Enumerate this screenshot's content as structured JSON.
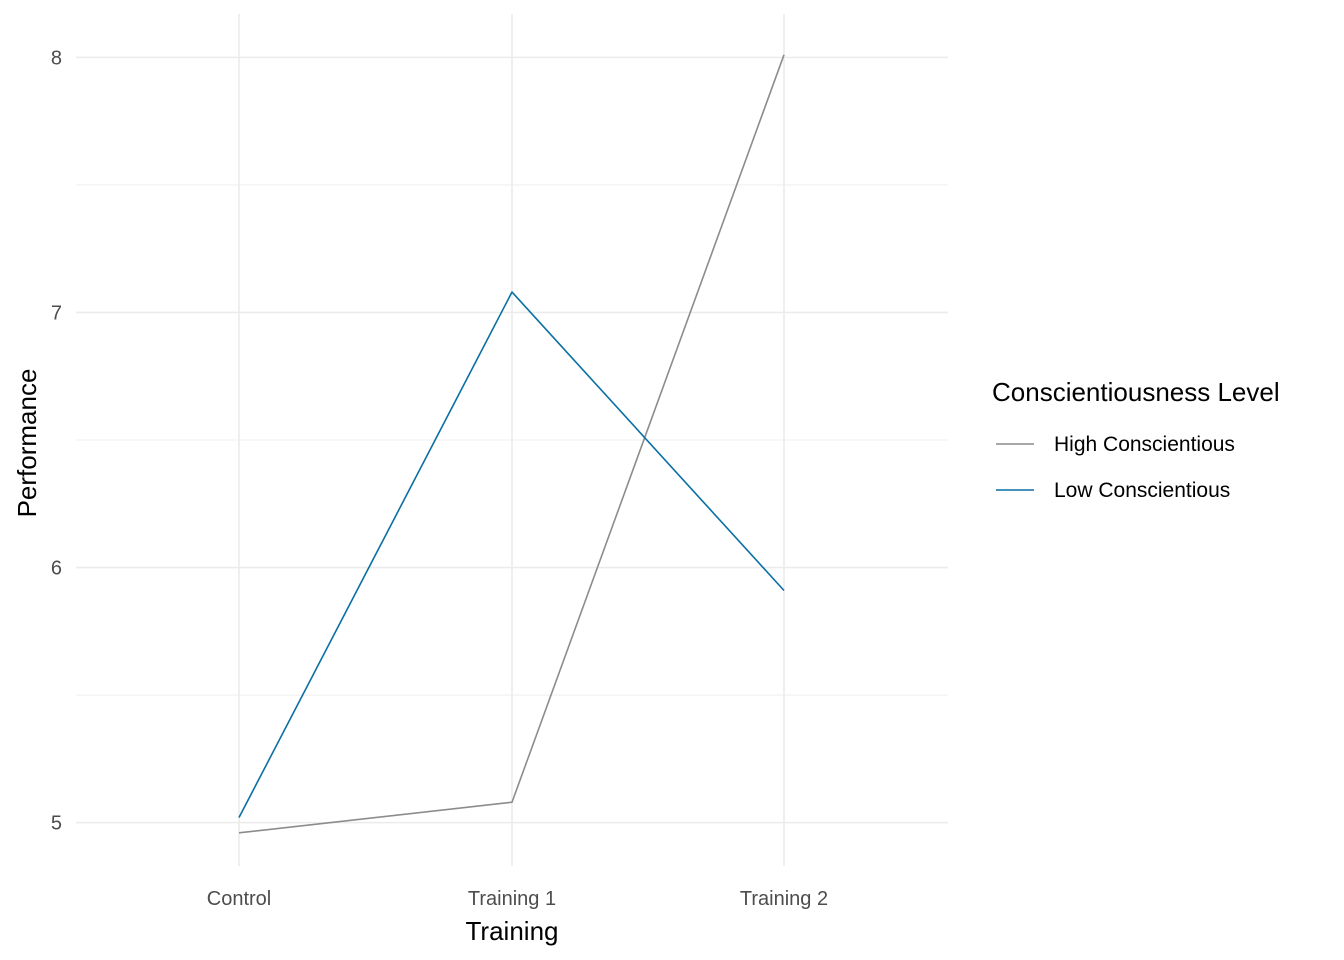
{
  "chart_data": {
    "type": "line",
    "title": "",
    "xlabel": "Training",
    "ylabel": "Performance",
    "categories": [
      "Control",
      "Training 1",
      "Training 2"
    ],
    "ylim": [
      4.83,
      8.17
    ],
    "yticks": [
      5,
      6,
      7,
      8
    ],
    "grid": true,
    "legend": {
      "title": "Conscientiousness Level",
      "placement": "right"
    },
    "series": [
      {
        "name": "High Conscientious",
        "color": "#8c8c8c",
        "values": [
          4.96,
          5.08,
          8.01
        ]
      },
      {
        "name": "Low Conscientious",
        "color": "#0a6fa3",
        "values": [
          5.02,
          7.08,
          5.91
        ]
      }
    ]
  }
}
